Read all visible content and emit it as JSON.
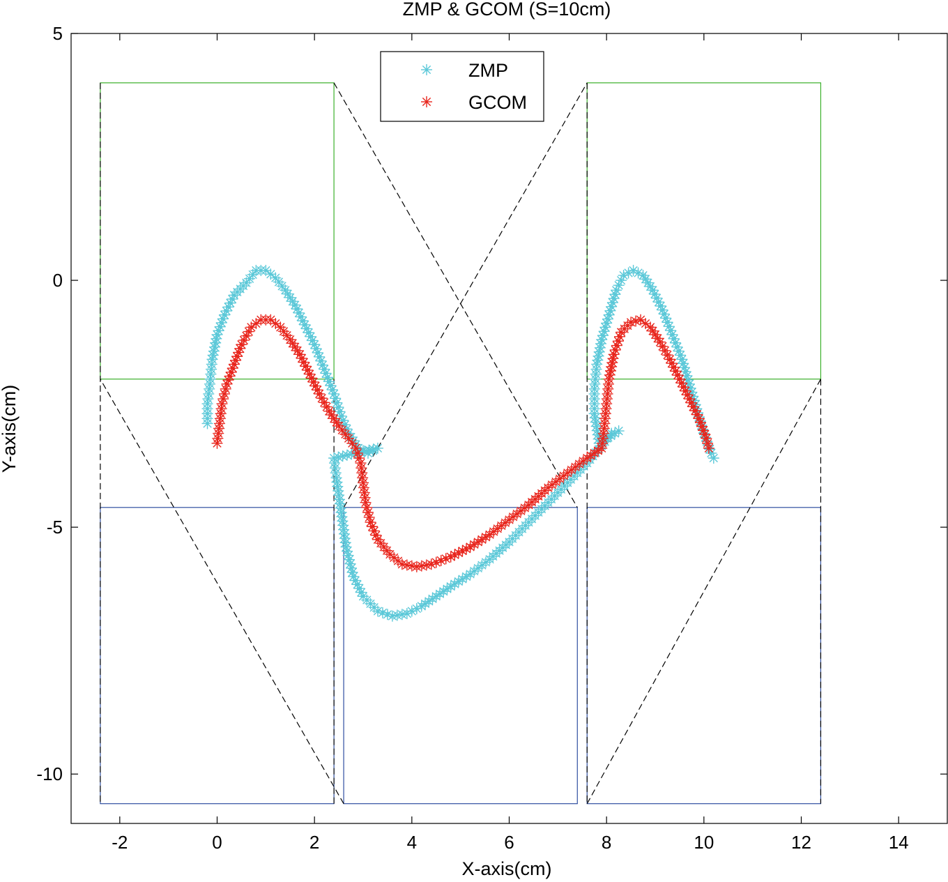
{
  "chart_data": {
    "type": "scatter",
    "title": "ZMP & GCOM (S=10cm)",
    "xlabel": "X-axis(cm)",
    "ylabel": "Y-axis(cm)",
    "xlim": [
      -3,
      15
    ],
    "ylim": [
      -11,
      5
    ],
    "xticks": [
      -2,
      0,
      2,
      4,
      6,
      8,
      10,
      12,
      14
    ],
    "yticks": [
      5,
      0,
      -5,
      -10
    ],
    "grid": false,
    "legend_position": "top-center",
    "colors": {
      "zmp": "#5bc8d8",
      "gcom": "#e8251c",
      "upper_footprint": "#3ab02a",
      "lower_footprint": "#2f4fa0",
      "support_polygon": "#000000"
    },
    "series": [
      {
        "name": "ZMP",
        "marker": "asterisk",
        "points": [
          [
            -0.2,
            -2.9
          ],
          [
            -0.2,
            -2.5
          ],
          [
            -0.15,
            -2.1
          ],
          [
            -0.1,
            -1.6
          ],
          [
            0.0,
            -1.1
          ],
          [
            0.15,
            -0.7
          ],
          [
            0.35,
            -0.3
          ],
          [
            0.6,
            -0.05
          ],
          [
            0.8,
            0.2
          ],
          [
            1.0,
            0.2
          ],
          [
            1.2,
            0.05
          ],
          [
            1.4,
            -0.2
          ],
          [
            1.6,
            -0.5
          ],
          [
            1.8,
            -0.9
          ],
          [
            2.0,
            -1.3
          ],
          [
            2.2,
            -1.8
          ],
          [
            2.4,
            -2.3
          ],
          [
            2.55,
            -2.75
          ],
          [
            2.7,
            -3.1
          ],
          [
            2.9,
            -3.4
          ],
          [
            3.1,
            -3.5
          ],
          [
            3.3,
            -3.4
          ],
          [
            2.4,
            -3.6
          ],
          [
            2.45,
            -4.0
          ],
          [
            2.55,
            -4.7
          ],
          [
            2.65,
            -5.4
          ],
          [
            2.8,
            -6.0
          ],
          [
            3.0,
            -6.4
          ],
          [
            3.3,
            -6.7
          ],
          [
            3.6,
            -6.8
          ],
          [
            3.9,
            -6.75
          ],
          [
            4.2,
            -6.6
          ],
          [
            4.5,
            -6.4
          ],
          [
            4.8,
            -6.2
          ],
          [
            5.2,
            -5.95
          ],
          [
            5.6,
            -5.65
          ],
          [
            6.0,
            -5.3
          ],
          [
            6.4,
            -4.9
          ],
          [
            6.8,
            -4.5
          ],
          [
            7.2,
            -4.1
          ],
          [
            7.6,
            -3.7
          ],
          [
            7.9,
            -3.35
          ],
          [
            8.1,
            -3.1
          ],
          [
            8.25,
            -3.05
          ],
          [
            7.85,
            -3.3
          ],
          [
            7.75,
            -2.7
          ],
          [
            7.75,
            -2.2
          ],
          [
            7.8,
            -1.7
          ],
          [
            7.9,
            -1.2
          ],
          [
            8.05,
            -0.7
          ],
          [
            8.2,
            -0.2
          ],
          [
            8.35,
            0.1
          ],
          [
            8.55,
            0.2
          ],
          [
            8.75,
            0.1
          ],
          [
            8.95,
            -0.2
          ],
          [
            9.15,
            -0.6
          ],
          [
            9.35,
            -1.1
          ],
          [
            9.55,
            -1.6
          ],
          [
            9.7,
            -2.1
          ],
          [
            9.85,
            -2.6
          ],
          [
            10.0,
            -3.1
          ],
          [
            10.15,
            -3.5
          ],
          [
            10.2,
            -3.6
          ]
        ]
      },
      {
        "name": "GCOM",
        "marker": "asterisk",
        "points": [
          [
            0.0,
            -3.3
          ],
          [
            0.05,
            -2.9
          ],
          [
            0.1,
            -2.5
          ],
          [
            0.2,
            -2.1
          ],
          [
            0.35,
            -1.7
          ],
          [
            0.5,
            -1.3
          ],
          [
            0.7,
            -0.95
          ],
          [
            0.9,
            -0.8
          ],
          [
            1.1,
            -0.8
          ],
          [
            1.3,
            -0.95
          ],
          [
            1.5,
            -1.2
          ],
          [
            1.7,
            -1.5
          ],
          [
            1.9,
            -1.9
          ],
          [
            2.1,
            -2.3
          ],
          [
            2.3,
            -2.65
          ],
          [
            2.5,
            -2.95
          ],
          [
            2.7,
            -3.2
          ],
          [
            2.85,
            -3.4
          ],
          [
            2.95,
            -3.7
          ],
          [
            3.0,
            -4.1
          ],
          [
            3.05,
            -4.5
          ],
          [
            3.15,
            -4.9
          ],
          [
            3.3,
            -5.25
          ],
          [
            3.55,
            -5.55
          ],
          [
            3.8,
            -5.75
          ],
          [
            4.1,
            -5.8
          ],
          [
            4.4,
            -5.75
          ],
          [
            4.8,
            -5.6
          ],
          [
            5.2,
            -5.4
          ],
          [
            5.6,
            -5.15
          ],
          [
            6.0,
            -4.85
          ],
          [
            6.4,
            -4.55
          ],
          [
            6.8,
            -4.2
          ],
          [
            7.2,
            -3.9
          ],
          [
            7.6,
            -3.6
          ],
          [
            7.9,
            -3.4
          ],
          [
            7.95,
            -3.0
          ],
          [
            8.0,
            -2.5
          ],
          [
            8.05,
            -2.0
          ],
          [
            8.15,
            -1.5
          ],
          [
            8.3,
            -1.05
          ],
          [
            8.5,
            -0.85
          ],
          [
            8.7,
            -0.8
          ],
          [
            8.9,
            -0.95
          ],
          [
            9.1,
            -1.25
          ],
          [
            9.3,
            -1.6
          ],
          [
            9.5,
            -2.0
          ],
          [
            9.7,
            -2.4
          ],
          [
            9.9,
            -2.8
          ],
          [
            10.05,
            -3.2
          ],
          [
            10.1,
            -3.4
          ]
        ]
      }
    ],
    "upper_footprints": [
      [
        -2.4,
        -2.0,
        2.4,
        4.0
      ],
      [
        7.6,
        -2.0,
        12.4,
        4.0
      ]
    ],
    "lower_footprints": [
      [
        -2.4,
        -10.6,
        2.4,
        -4.6
      ],
      [
        2.6,
        -10.6,
        7.4,
        -4.6
      ],
      [
        7.6,
        -10.6,
        12.4,
        -4.6
      ]
    ],
    "support_polygons": [
      [
        [
          2.4,
          4.0
        ],
        [
          7.4,
          -4.6
        ]
      ],
      [
        [
          2.6,
          -10.6
        ],
        [
          -2.4,
          -2.0
        ]
      ],
      [
        [
          2.4,
          -10.6
        ],
        [
          2.4,
          -2.0
        ]
      ],
      [
        [
          -2.4,
          4.0
        ],
        [
          -2.4,
          -10.6
        ]
      ],
      [
        [
          2.6,
          -4.6
        ],
        [
          7.6,
          4.0
        ]
      ],
      [
        [
          7.6,
          -10.6
        ],
        [
          12.4,
          -2.0
        ]
      ],
      [
        [
          7.6,
          4.0
        ],
        [
          7.6,
          -10.6
        ]
      ],
      [
        [
          12.4,
          -2.0
        ],
        [
          12.4,
          -10.6
        ]
      ]
    ]
  }
}
